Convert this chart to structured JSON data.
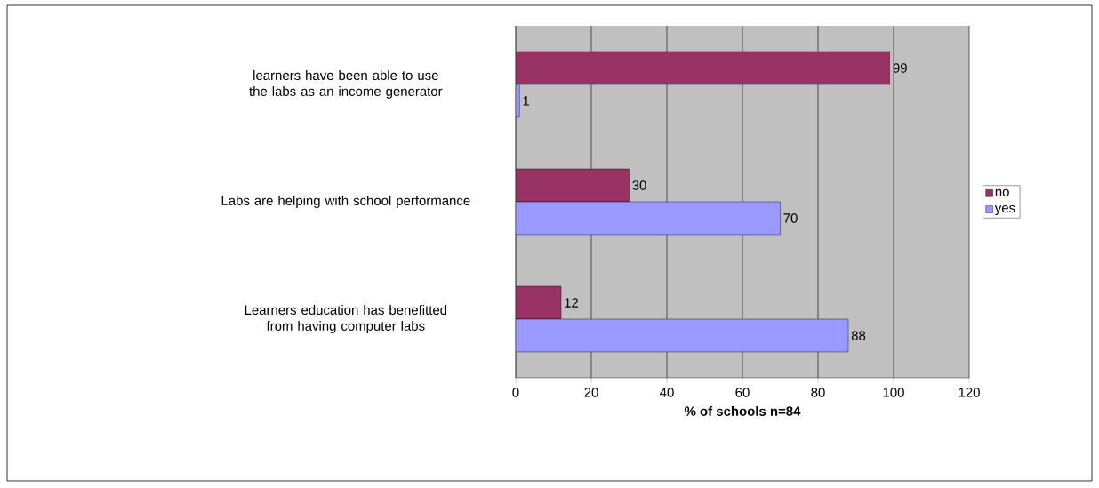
{
  "chart_data": {
    "type": "bar",
    "orientation": "horizontal",
    "categories": [
      "learners have been able to use the labs as an income generator",
      "Labs are helping with school performance",
      "Learners education has benefitted from having computer labs"
    ],
    "series": [
      {
        "name": "no",
        "color": "#993366",
        "values": [
          99,
          30,
          12
        ]
      },
      {
        "name": "yes",
        "color": "#9999ff",
        "values": [
          1,
          70,
          88
        ]
      }
    ],
    "xlabel": "% of schools n=84",
    "xlim": [
      0,
      120
    ],
    "xticks": [
      0,
      20,
      40,
      60,
      80,
      100,
      120
    ],
    "grid": "x",
    "legend": "right",
    "data_labels": true
  }
}
